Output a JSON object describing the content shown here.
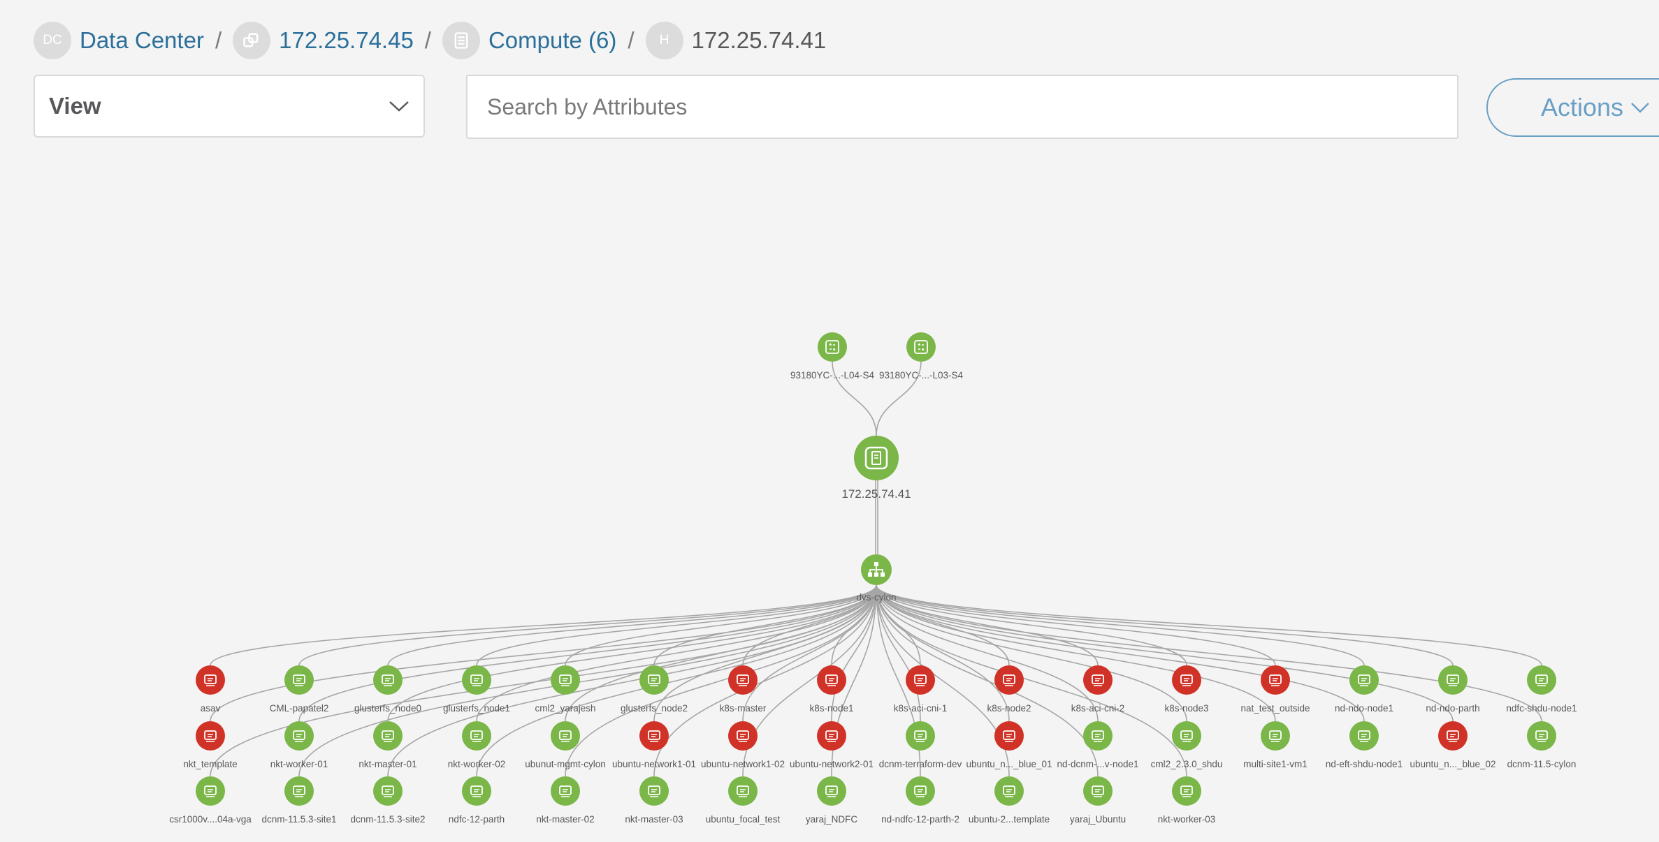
{
  "breadcrumb": [
    {
      "avatar": "DC",
      "icon": "",
      "label": "Data Center"
    },
    {
      "avatar": "",
      "icon": "cluster-icon",
      "label": "172.25.74.45"
    },
    {
      "avatar": "",
      "icon": "compute-icon",
      "label": "Compute (6)"
    },
    {
      "avatar": "H",
      "icon": "",
      "label": "172.25.74.41"
    }
  ],
  "view": {
    "label": "View"
  },
  "search": {
    "placeholder": "Search by Attributes",
    "value": ""
  },
  "actions": {
    "label": "Actions"
  },
  "colors": {
    "ok": "#7ab648",
    "error": "#d13227",
    "link": "#2b6f9a",
    "edge": "#a6a6a6"
  },
  "topology": {
    "switches": [
      {
        "name": "93180YC-...-L04-S4",
        "status": "ok",
        "icon": "switch-icon"
      },
      {
        "name": "93180YC-...-L03-S4",
        "status": "ok",
        "icon": "switch-icon"
      }
    ],
    "host": {
      "name": "172.25.74.41",
      "status": "ok",
      "icon": "server-icon"
    },
    "vswitch": {
      "name": "dvs-cylon",
      "status": "ok",
      "icon": "network-hierarchy-icon"
    },
    "vms": [
      [
        {
          "name": "asav",
          "status": "error"
        },
        {
          "name": "CML-papatel2",
          "status": "ok"
        },
        {
          "name": "glusterfs_node0",
          "status": "ok"
        },
        {
          "name": "glusterfs_node1",
          "status": "ok"
        },
        {
          "name": "cml2_yarajesh",
          "status": "ok"
        },
        {
          "name": "glusterfs_node2",
          "status": "ok"
        },
        {
          "name": "k8s-master",
          "status": "error"
        },
        {
          "name": "k8s-node1",
          "status": "error"
        },
        {
          "name": "k8s-aci-cni-1",
          "status": "error"
        },
        {
          "name": "k8s-node2",
          "status": "error"
        },
        {
          "name": "k8s-aci-cni-2",
          "status": "error"
        },
        {
          "name": "k8s-node3",
          "status": "error"
        },
        {
          "name": "nat_test_outside",
          "status": "error"
        },
        {
          "name": "nd-ndo-node1",
          "status": "ok"
        },
        {
          "name": "nd-ndo-parth",
          "status": "ok"
        },
        {
          "name": "ndfc-shdu-node1",
          "status": "ok"
        }
      ],
      [
        {
          "name": "nkt_template",
          "status": "error"
        },
        {
          "name": "nkt-worker-01",
          "status": "ok"
        },
        {
          "name": "nkt-master-01",
          "status": "ok"
        },
        {
          "name": "nkt-worker-02",
          "status": "ok"
        },
        {
          "name": "ubunut-mgmt-cylon",
          "status": "ok"
        },
        {
          "name": "ubuntu-network1-01",
          "status": "error"
        },
        {
          "name": "ubuntu-network1-02",
          "status": "error"
        },
        {
          "name": "ubuntu-network2-01",
          "status": "error"
        },
        {
          "name": "dcnm-terraform-dev",
          "status": "ok"
        },
        {
          "name": "ubuntu_n..._blue_01",
          "status": "error"
        },
        {
          "name": "nd-dcnm-...v-node1",
          "status": "ok"
        },
        {
          "name": "cml2_2.3.0_shdu",
          "status": "ok"
        },
        {
          "name": "multi-site1-vm1",
          "status": "ok"
        },
        {
          "name": "nd-eft-shdu-node1",
          "status": "ok"
        },
        {
          "name": "ubuntu_n..._blue_02",
          "status": "error"
        },
        {
          "name": "dcnm-11.5-cylon",
          "status": "ok"
        }
      ],
      [
        {
          "name": "csr1000v....04a-vga",
          "status": "ok"
        },
        {
          "name": "dcnm-11.5.3-site1",
          "status": "ok"
        },
        {
          "name": "dcnm-11.5.3-site2",
          "status": "ok"
        },
        {
          "name": "ndfc-12-parth",
          "status": "ok"
        },
        {
          "name": "nkt-master-02",
          "status": "ok"
        },
        {
          "name": "nkt-master-03",
          "status": "ok"
        },
        {
          "name": "ubuntu_focal_test",
          "status": "ok"
        },
        {
          "name": "yaraj_NDFC",
          "status": "ok"
        },
        {
          "name": "nd-ndfc-12-parth-2",
          "status": "ok"
        },
        {
          "name": "ubuntu-2...template",
          "status": "ok"
        },
        {
          "name": "yaraj_Ubuntu",
          "status": "ok"
        },
        {
          "name": "nkt-worker-03",
          "status": "ok"
        }
      ]
    ]
  }
}
